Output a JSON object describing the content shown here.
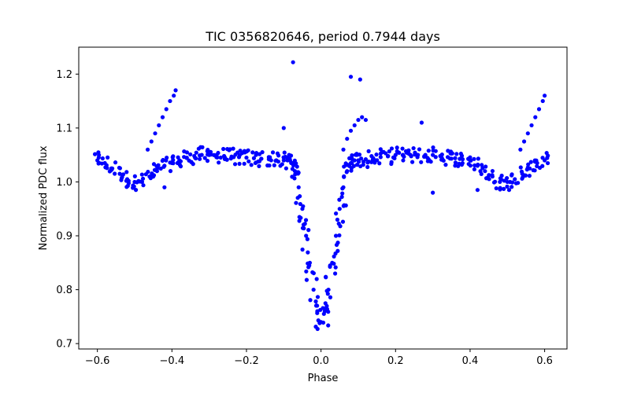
{
  "chart_data": {
    "type": "scatter",
    "title": "TIC 0356820646, period 0.7944 days",
    "xlabel": "Phase",
    "ylabel": "Normalized PDC flux",
    "xlim": [
      -0.65,
      0.66
    ],
    "ylim": [
      0.69,
      1.25
    ],
    "xticks": [
      -0.6,
      -0.4,
      -0.2,
      0.0,
      0.2,
      0.4,
      0.6
    ],
    "xtick_labels": [
      "−0.6",
      "−0.4",
      "−0.2",
      "0.0",
      "0.2",
      "0.4",
      "0.6"
    ],
    "yticks": [
      0.7,
      0.8,
      0.9,
      1.0,
      1.1,
      1.2
    ],
    "ytick_labels": [
      "0.7",
      "0.8",
      "0.9",
      "1.0",
      "1.1",
      "1.2"
    ],
    "grid": false,
    "legend": null,
    "color": "#0000ff",
    "series": [
      {
        "x": [
          -0.6,
          -0.58,
          -0.56,
          -0.54,
          -0.52,
          -0.5,
          -0.48,
          -0.46,
          -0.44,
          -0.42,
          -0.4,
          -0.38,
          -0.36,
          -0.34,
          -0.32,
          -0.3,
          -0.28,
          -0.26,
          -0.24,
          -0.22,
          -0.2,
          -0.18,
          -0.16,
          -0.14,
          -0.12,
          -0.1,
          -0.09,
          -0.08,
          -0.07,
          -0.06,
          -0.05,
          -0.04,
          -0.03,
          -0.02,
          -0.01,
          0.0,
          0.01,
          0.02,
          0.03,
          0.04,
          0.05,
          0.06,
          0.07,
          0.08,
          0.09,
          0.1,
          0.12,
          0.14,
          0.16,
          0.18,
          0.2,
          0.22,
          0.24,
          0.26,
          0.28,
          0.3,
          0.32,
          0.34,
          0.36,
          0.38,
          0.4,
          0.42,
          0.44,
          0.46,
          0.48,
          0.5,
          0.52,
          0.54,
          0.56,
          0.58,
          0.6
        ],
        "y": [
          1.04,
          1.035,
          1.025,
          1.015,
          1.005,
          1.0,
          1.0,
          1.01,
          1.02,
          1.03,
          1.035,
          1.04,
          1.045,
          1.048,
          1.05,
          1.05,
          1.05,
          1.048,
          1.047,
          1.046,
          1.045,
          1.044,
          1.043,
          1.042,
          1.04,
          1.04,
          1.04,
          1.035,
          1.02,
          0.99,
          0.95,
          0.9,
          0.85,
          0.8,
          0.76,
          0.74,
          0.76,
          0.8,
          0.85,
          0.9,
          0.95,
          0.99,
          1.02,
          1.035,
          1.04,
          1.04,
          1.042,
          1.044,
          1.046,
          1.048,
          1.05,
          1.05,
          1.05,
          1.05,
          1.05,
          1.05,
          1.048,
          1.046,
          1.044,
          1.042,
          1.04,
          1.03,
          1.02,
          1.01,
          1.0,
          1.0,
          1.005,
          1.015,
          1.025,
          1.035,
          1.04
        ]
      },
      {
        "x": [
          -0.465,
          -0.455,
          -0.445,
          -0.435,
          -0.425,
          -0.415,
          -0.405,
          -0.395,
          -0.39
        ],
        "y": [
          1.06,
          1.075,
          1.09,
          1.105,
          1.12,
          1.135,
          1.15,
          1.16,
          1.17
        ]
      },
      {
        "x": [
          0.535,
          0.545,
          0.555,
          0.565,
          0.575,
          0.585,
          0.595,
          0.6
        ],
        "y": [
          1.06,
          1.075,
          1.09,
          1.105,
          1.12,
          1.135,
          1.15,
          1.16
        ]
      },
      {
        "x": [
          0.06,
          0.07,
          0.08,
          0.09,
          0.1,
          0.11,
          0.12
        ],
        "y": [
          1.06,
          1.08,
          1.095,
          1.105,
          1.115,
          1.12,
          1.115
        ]
      },
      {
        "x": [
          -0.075,
          0.08,
          0.105,
          0.27,
          -0.1,
          0.3,
          -0.42,
          0.42
        ],
        "y": [
          1.222,
          1.195,
          1.19,
          1.11,
          1.1,
          0.98,
          0.99,
          0.985
        ]
      }
    ]
  }
}
